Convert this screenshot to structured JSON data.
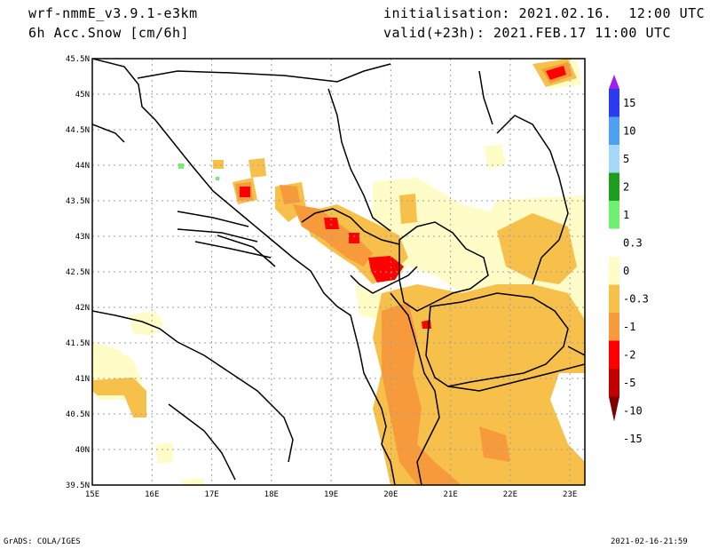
{
  "header": {
    "model": "wrf-nmmE_v3.9.1-e3km",
    "field": "6h Acc.Snow [cm/6h]",
    "init": "initialisation: 2021.02.16.  12:00 UTC",
    "valid": "valid(+23h): 2021.FEB.17 11:00 UTC"
  },
  "map": {
    "lon_range": [
      15,
      23.25
    ],
    "lat_range": [
      39.5,
      45.5
    ],
    "lon_ticks": [
      "15E",
      "16E",
      "17E",
      "18E",
      "19E",
      "20E",
      "21E",
      "22E",
      "23E"
    ],
    "lat_ticks": [
      "39.5N",
      "40N",
      "40.5N",
      "41N",
      "41.5N",
      "42N",
      "42.5N",
      "43N",
      "43.5N",
      "44N",
      "44.5N",
      "45N",
      "45.5N"
    ],
    "grid": true
  },
  "colorbar": {
    "labels": [
      "15",
      "10",
      "5",
      "2",
      "1",
      "0.3",
      "0",
      "-0.3",
      "-1",
      "-2",
      "-5",
      "-10",
      "-15"
    ],
    "colors": [
      "#a020f0",
      "#2b3cf0",
      "#4f9ff0",
      "#a8d8f8",
      "#1e9e1e",
      "#70f070",
      "#ffffff",
      "#fffcc8",
      "#f7c04a",
      "#f79a3c",
      "#ff0000",
      "#c00000",
      "#800000"
    ]
  },
  "footer": {
    "left": "GrADS: COLA/IGES",
    "right": "2021-02-16-21:59"
  }
}
